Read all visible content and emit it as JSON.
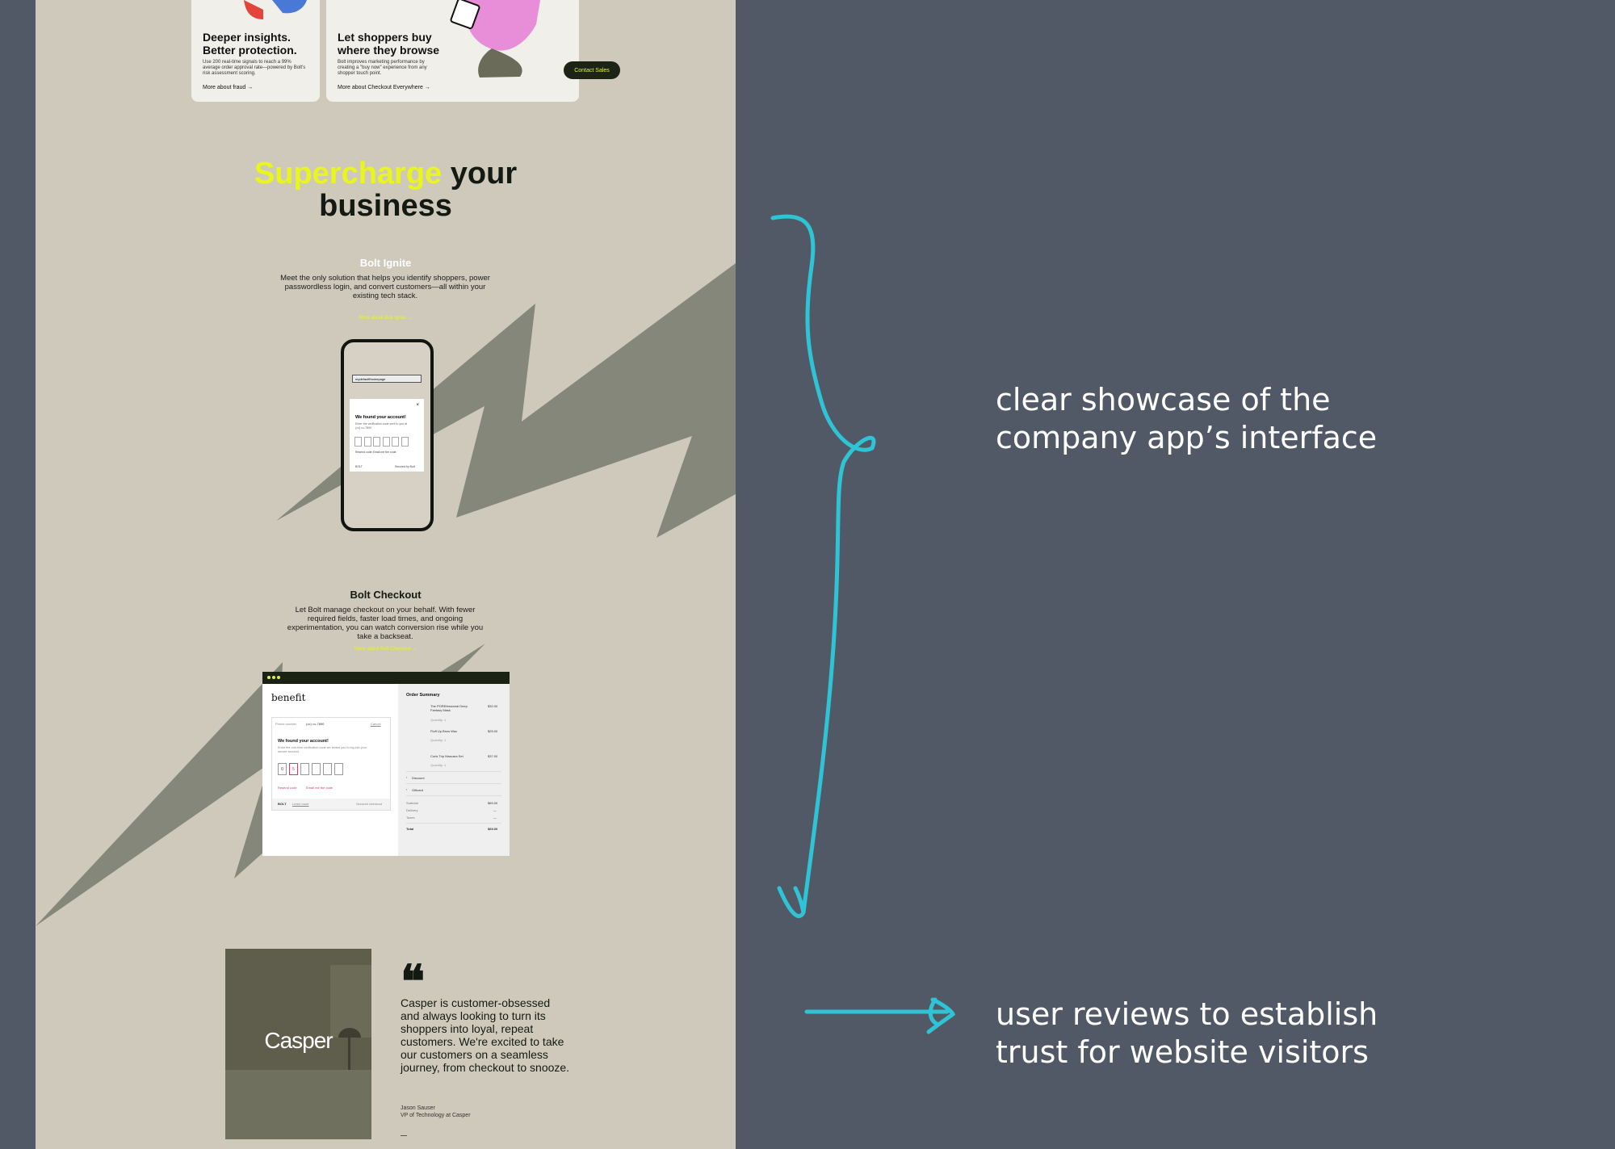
{
  "cards": [
    {
      "title": "Deeper insights. Better protection.",
      "body": "Use 200 real-time signals to reach a 99% average order approval rate—powered by Bolt's risk assessment scoring.",
      "link": "More about fraud →"
    },
    {
      "title": "Let shoppers buy where they browse",
      "body": "Bolt improves marketing performance by creating a \"buy now\" experience from any shopper touch point.",
      "link": "More about Checkout Everywhere →"
    }
  ],
  "contact_button": "Contact Sales",
  "headline": {
    "highlight": "Supercharge",
    "rest1": " your",
    "line2": "business"
  },
  "ignite": {
    "title": "Bolt Ignite",
    "body": "Meet the only solution that helps you identify shoppers, power passwordless login, and convert customers—all within your existing tech stack.",
    "link": "More about Bolt Ignite →"
  },
  "phone": {
    "url": "mydefaulfthomepage",
    "modal_title": "We found your account!",
    "modal_desc": "Enter the verification code sent to you at (•••) •••-7890",
    "resend": "Resend code   Email me the code",
    "footer": "BOLT",
    "footer_right": "Secured by Bolt"
  },
  "checkout": {
    "title": "Bolt Checkout",
    "body": "Let Bolt manage checkout on your behalf. With fewer required fields, faster load times, and ongoing experimentation, you can watch conversion rise while you take a backseat.",
    "link": "More about Bolt Checkout →"
  },
  "browser": {
    "brand": "benefit",
    "phone_label": "Phone number",
    "phone_value": "(•••) •••-7890",
    "cancel": "Cancel",
    "found": "We found your account!",
    "found_desc": "Enter the one-time verification code we texted you to log into your secure account.",
    "otp": [
      "0",
      "5",
      "",
      "",
      "",
      ""
    ],
    "resend": "Resend code",
    "email": "Email me the code",
    "bolt": "BOLT",
    "learn": "Learn more",
    "secured": "Secured checkout",
    "order_title": "Order Summary",
    "items": [
      {
        "name": "The POREfessional Deep Fantasy Mask",
        "price": "$32.00",
        "qty": "Quantity: 1"
      },
      {
        "name": "Fluff Up Brow Wax",
        "price": "$25.00",
        "qty": "Quantity: 1"
      },
      {
        "name": "Curls Trip Mascara Set",
        "price": "$37.00",
        "qty": "Quantity: 1"
      }
    ],
    "discount": "Discount",
    "giftcard": "Giftcard",
    "subtotal_label": "Subtotal",
    "subtotal": "$69.00",
    "delivery_label": "Delivery",
    "delivery": "—",
    "taxes_label": "Taxes",
    "taxes": "—",
    "total_label": "Total",
    "total": "$69.00"
  },
  "quote": {
    "photo_logo": "Casper",
    "text": "Casper is customer-obsessed and always looking to turn its shoppers into loyal, repeat customers. We're excited to take our customers on a seamless journey, from checkout to snooze.",
    "name": "Jason Sauser",
    "role": "VP of Technology at Casper"
  },
  "annotations": {
    "showcase": "clear showcase of the company app’s interface",
    "reviews": "user reviews to establish trust for website visitors"
  },
  "colors": {
    "page_bg": "#525966",
    "site_bg": "#cfc9bc",
    "accent": "#e8f61b",
    "annotation_line": "#2ec4d6"
  }
}
